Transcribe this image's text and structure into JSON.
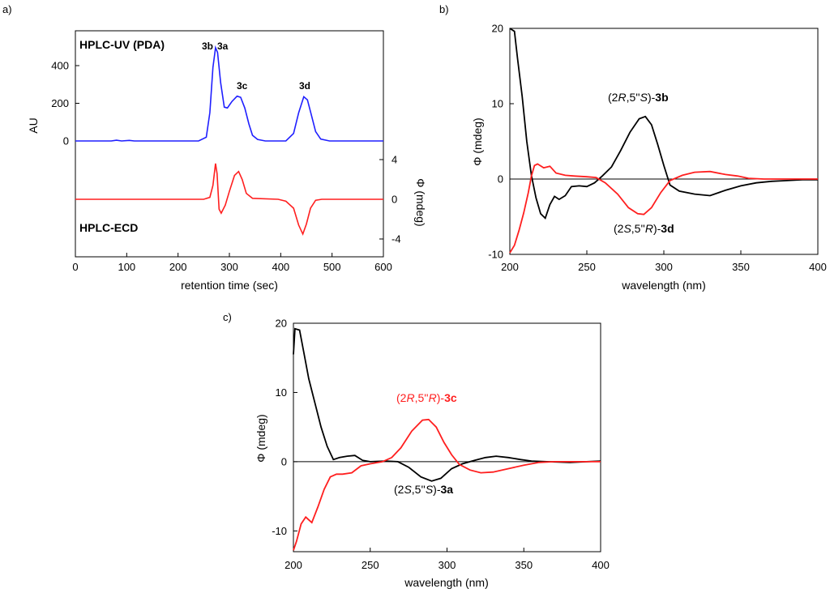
{
  "panel_labels": [
    "a)",
    "b)",
    "c)"
  ],
  "colors": {
    "uv": "#1f1fff",
    "ecd": "#ff1f1f",
    "black": "#000000",
    "red": "#ff1f1f"
  },
  "chart_data": [
    {
      "id": "a",
      "type": "line",
      "xlabel": "retention time (sec)",
      "ylabel_left": "AU",
      "ylabel_right": "Φ (mdeg)",
      "xlim": [
        0,
        600
      ],
      "x_ticks": [
        "0",
        "100",
        "200",
        "300",
        "400",
        "500",
        "600"
      ],
      "y_ticks_left": [
        "0",
        "200",
        "400"
      ],
      "y_ticks_right": [
        "4",
        "0",
        "-4"
      ],
      "trace_labels": {
        "uv": "HPLC-UV (PDA)",
        "ecd": "HPLC-ECD"
      },
      "peak_labels": [
        "3b",
        "3a",
        "3c",
        "3d"
      ],
      "series": [
        {
          "key": "uv",
          "points": [
            [
              0,
              0
            ],
            [
              70,
              0
            ],
            [
              80,
              4
            ],
            [
              90,
              0
            ],
            [
              105,
              3
            ],
            [
              115,
              0
            ],
            [
              240,
              0
            ],
            [
              255,
              20
            ],
            [
              262,
              150
            ],
            [
              268,
              390
            ],
            [
              273,
              495
            ],
            [
              277,
              470
            ],
            [
              283,
              310
            ],
            [
              290,
              180
            ],
            [
              296,
              175
            ],
            [
              305,
              210
            ],
            [
              315,
              238
            ],
            [
              322,
              232
            ],
            [
              330,
              175
            ],
            [
              338,
              90
            ],
            [
              345,
              30
            ],
            [
              355,
              8
            ],
            [
              370,
              0
            ],
            [
              410,
              0
            ],
            [
              425,
              40
            ],
            [
              435,
              150
            ],
            [
              445,
              235
            ],
            [
              452,
              218
            ],
            [
              460,
              135
            ],
            [
              468,
              50
            ],
            [
              478,
              10
            ],
            [
              495,
              0
            ],
            [
              600,
              0
            ]
          ]
        },
        {
          "key": "ecd",
          "points": [
            [
              0,
              0
            ],
            [
              250,
              0
            ],
            [
              262,
              0.2
            ],
            [
              268,
              1.4
            ],
            [
              273,
              3.6
            ],
            [
              276,
              2.6
            ],
            [
              280,
              -1.0
            ],
            [
              284,
              -1.4
            ],
            [
              292,
              -0.6
            ],
            [
              300,
              0.8
            ],
            [
              310,
              2.4
            ],
            [
              318,
              2.8
            ],
            [
              325,
              2.0
            ],
            [
              333,
              0.6
            ],
            [
              345,
              0.1
            ],
            [
              395,
              0
            ],
            [
              410,
              -0.2
            ],
            [
              425,
              -0.9
            ],
            [
              435,
              -2.6
            ],
            [
              443,
              -3.5
            ],
            [
              450,
              -2.5
            ],
            [
              458,
              -0.9
            ],
            [
              468,
              -0.1
            ],
            [
              480,
              0
            ],
            [
              600,
              0
            ]
          ]
        }
      ]
    },
    {
      "id": "b",
      "type": "line",
      "xlabel": "wavelength (nm)",
      "ylabel": "Φ (mdeg)",
      "xlim": [
        200,
        400
      ],
      "ylim": [
        -10,
        20
      ],
      "x_ticks": [
        "200",
        "250",
        "300",
        "350",
        "400"
      ],
      "y_ticks": [
        "-10",
        "0",
        "10",
        "20"
      ],
      "series": [
        {
          "key": "3b",
          "color": "black",
          "points": [
            [
              200,
              20
            ],
            [
              203,
              19.6
            ],
            [
              205,
              16
            ],
            [
              208,
              11
            ],
            [
              211,
              5
            ],
            [
              214,
              0.5
            ],
            [
              217,
              -2.5
            ],
            [
              220,
              -4.6
            ],
            [
              223,
              -5.2
            ],
            [
              226,
              -3.4
            ],
            [
              229,
              -2.3
            ],
            [
              232,
              -2.7
            ],
            [
              236,
              -2.2
            ],
            [
              240,
              -1.0
            ],
            [
              245,
              -0.9
            ],
            [
              250,
              -1.0
            ],
            [
              255,
              -0.5
            ],
            [
              260,
              0.4
            ],
            [
              266,
              1.6
            ],
            [
              272,
              3.8
            ],
            [
              278,
              6.2
            ],
            [
              284,
              8.0
            ],
            [
              288,
              8.3
            ],
            [
              292,
              7.2
            ],
            [
              296,
              4.6
            ],
            [
              300,
              1.8
            ],
            [
              304,
              -0.8
            ],
            [
              310,
              -1.6
            ],
            [
              320,
              -2.0
            ],
            [
              330,
              -2.2
            ],
            [
              340,
              -1.5
            ],
            [
              350,
              -0.9
            ],
            [
              360,
              -0.5
            ],
            [
              370,
              -0.3
            ],
            [
              380,
              -0.2
            ],
            [
              390,
              -0.1
            ],
            [
              400,
              -0.1
            ]
          ]
        },
        {
          "key": "3d",
          "color": "red",
          "points": [
            [
              200,
              -9.8
            ],
            [
              203,
              -8.8
            ],
            [
              206,
              -6.8
            ],
            [
              209,
              -4.5
            ],
            [
              212,
              -1.8
            ],
            [
              214,
              0.4
            ],
            [
              216,
              1.8
            ],
            [
              218,
              2.0
            ],
            [
              222,
              1.5
            ],
            [
              226,
              1.7
            ],
            [
              230,
              0.8
            ],
            [
              236,
              0.5
            ],
            [
              242,
              0.4
            ],
            [
              250,
              0.3
            ],
            [
              256,
              0.2
            ],
            [
              262,
              -0.5
            ],
            [
              270,
              -2.0
            ],
            [
              277,
              -3.8
            ],
            [
              283,
              -4.6
            ],
            [
              287,
              -4.7
            ],
            [
              292,
              -3.8
            ],
            [
              298,
              -1.8
            ],
            [
              304,
              -0.2
            ],
            [
              312,
              0.5
            ],
            [
              320,
              0.9
            ],
            [
              330,
              1.0
            ],
            [
              340,
              0.6
            ],
            [
              348,
              0.4
            ],
            [
              355,
              0.1
            ],
            [
              365,
              0
            ],
            [
              380,
              0
            ],
            [
              400,
              0
            ]
          ]
        }
      ],
      "annotations": [
        {
          "pre": "(2",
          "c1": "R",
          "mid": ",5''",
          "c2": "S",
          "post": ")-",
          "cmp": "3b",
          "color": "black"
        },
        {
          "pre": "(2",
          "c1": "S",
          "mid": ",5''",
          "c2": "R",
          "post": ")-",
          "cmp": "3d",
          "color": "black"
        }
      ]
    },
    {
      "id": "c",
      "type": "line",
      "xlabel": "wavelength (nm)",
      "ylabel": "Φ (mdeg)",
      "xlim": [
        200,
        400
      ],
      "ylim": [
        -13,
        20
      ],
      "x_ticks": [
        "200",
        "250",
        "300",
        "350",
        "400"
      ],
      "y_ticks": [
        "-10",
        "0",
        "10",
        "20"
      ],
      "series": [
        {
          "key": "3a",
          "color": "black",
          "points": [
            [
              200,
              15.5
            ],
            [
              201,
              19.2
            ],
            [
              204,
              19
            ],
            [
              207,
              15.5
            ],
            [
              210,
              12
            ],
            [
              214,
              8.5
            ],
            [
              218,
              5
            ],
            [
              222,
              2.2
            ],
            [
              226,
              0.3
            ],
            [
              230,
              0.6
            ],
            [
              235,
              0.8
            ],
            [
              240,
              0.9
            ],
            [
              245,
              0.2
            ],
            [
              250,
              0
            ],
            [
              260,
              0.1
            ],
            [
              268,
              0
            ],
            [
              275,
              -0.8
            ],
            [
              283,
              -2.2
            ],
            [
              290,
              -2.8
            ],
            [
              296,
              -2.4
            ],
            [
              303,
              -1.0
            ],
            [
              310,
              -0.3
            ],
            [
              318,
              0.2
            ],
            [
              325,
              0.6
            ],
            [
              332,
              0.8
            ],
            [
              340,
              0.6
            ],
            [
              348,
              0.3
            ],
            [
              355,
              0.1
            ],
            [
              365,
              0
            ],
            [
              380,
              -0.1
            ],
            [
              400,
              0.1
            ]
          ]
        },
        {
          "key": "3c",
          "color": "red",
          "points": [
            [
              200,
              -12.8
            ],
            [
              202,
              -11.5
            ],
            [
              205,
              -9
            ],
            [
              208,
              -8
            ],
            [
              212,
              -8.8
            ],
            [
              216,
              -6.5
            ],
            [
              220,
              -4
            ],
            [
              224,
              -2.2
            ],
            [
              228,
              -1.8
            ],
            [
              232,
              -1.8
            ],
            [
              238,
              -1.6
            ],
            [
              244,
              -0.6
            ],
            [
              250,
              -0.3
            ],
            [
              258,
              0
            ],
            [
              264,
              0.6
            ],
            [
              270,
              2.0
            ],
            [
              277,
              4.4
            ],
            [
              284,
              6.0
            ],
            [
              288,
              6.1
            ],
            [
              293,
              5.0
            ],
            [
              298,
              2.8
            ],
            [
              303,
              1.0
            ],
            [
              308,
              -0.4
            ],
            [
              315,
              -1.2
            ],
            [
              322,
              -1.6
            ],
            [
              330,
              -1.5
            ],
            [
              340,
              -1.0
            ],
            [
              350,
              -0.5
            ],
            [
              360,
              -0.1
            ],
            [
              370,
              0
            ],
            [
              400,
              0
            ]
          ]
        }
      ],
      "annotations": [
        {
          "pre": "(2",
          "c1": "R",
          "mid": ",5''",
          "c2": "R",
          "post": ")-",
          "cmp": "3c",
          "color": "red"
        },
        {
          "pre": "(2",
          "c1": "S",
          "mid": ",5''",
          "c2": "S",
          "post": ")-",
          "cmp": "3a",
          "color": "black"
        }
      ]
    }
  ]
}
